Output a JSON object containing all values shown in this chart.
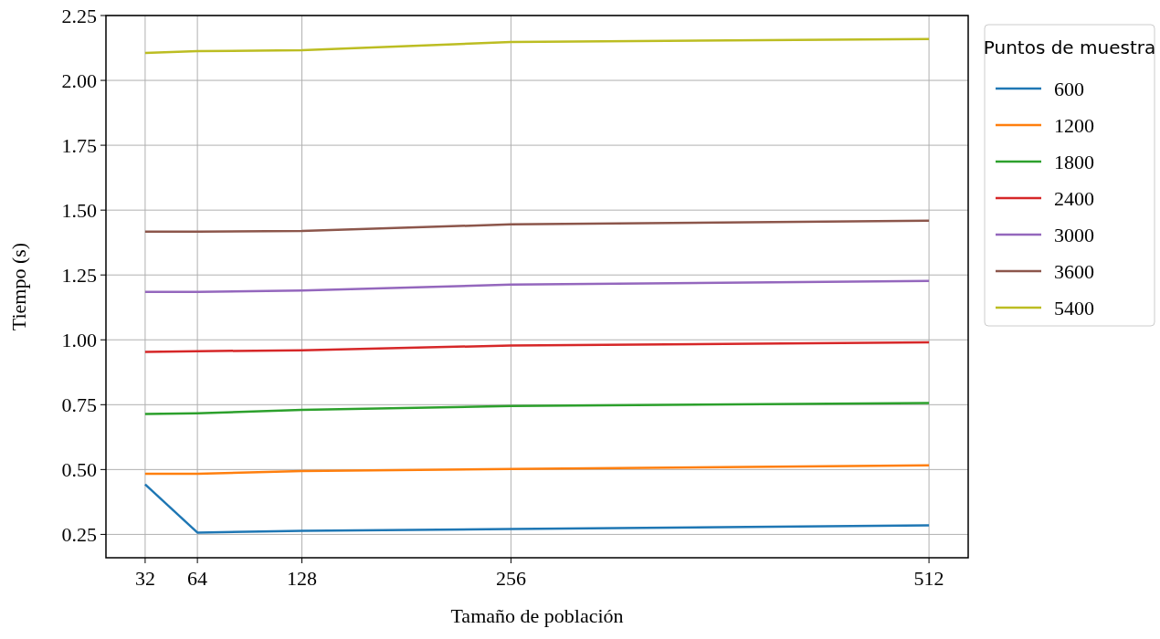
{
  "chart_data": {
    "type": "line",
    "xlabel": "Tamaño de población",
    "ylabel": "Tiempo (s)",
    "legend_title": "Puntos de muestra",
    "x": [
      32,
      64,
      128,
      256,
      512
    ],
    "xlim": [
      8,
      536
    ],
    "xticks": [
      32,
      64,
      128,
      256,
      512
    ],
    "ylim": [
      0.16,
      2.25
    ],
    "yticks": [
      {
        "value": 0.25,
        "label": "0.25"
      },
      {
        "value": 0.5,
        "label": "0.50"
      },
      {
        "value": 0.75,
        "label": "0.75"
      },
      {
        "value": 1,
        "label": "1.00"
      },
      {
        "value": 1.25,
        "label": "1.25"
      },
      {
        "value": 1.5,
        "label": "1.50"
      },
      {
        "value": 1.75,
        "label": "1.75"
      },
      {
        "value": 2,
        "label": "2.00"
      },
      {
        "value": 2.25,
        "label": "2.25"
      }
    ],
    "grid": true,
    "legend": "right",
    "line_style": "solid",
    "series": [
      {
        "name": "600",
        "color": "#1f77b4",
        "values": [
          0.443,
          0.257,
          0.264,
          0.271,
          0.285
        ]
      },
      {
        "name": "1200",
        "color": "#ff7f0e",
        "values": [
          0.484,
          0.484,
          0.494,
          0.502,
          0.516
        ]
      },
      {
        "name": "1800",
        "color": "#2ca02c",
        "values": [
          0.714,
          0.717,
          0.73,
          0.745,
          0.756
        ]
      },
      {
        "name": "2400",
        "color": "#d62728",
        "values": [
          0.953,
          0.956,
          0.96,
          0.978,
          0.99
        ]
      },
      {
        "name": "3000",
        "color": "#9467bd",
        "values": [
          1.185,
          1.185,
          1.19,
          1.213,
          1.227
        ]
      },
      {
        "name": "3600",
        "color": "#8c564b",
        "values": [
          1.417,
          1.417,
          1.42,
          1.445,
          1.459
        ]
      },
      {
        "name": "5400",
        "color": "#bcbd22",
        "values": [
          2.106,
          2.113,
          2.116,
          2.148,
          2.159
        ]
      }
    ]
  }
}
